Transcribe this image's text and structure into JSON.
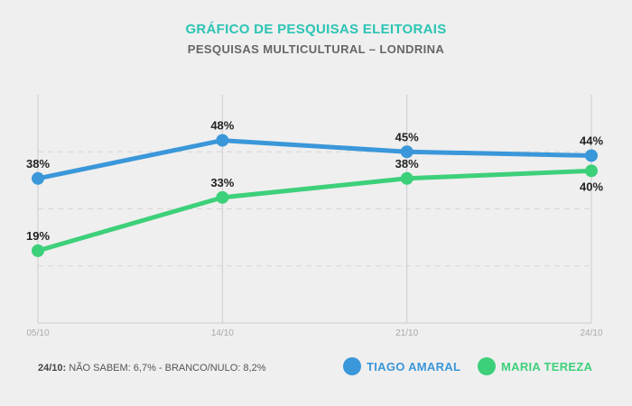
{
  "header": {
    "title": "GRÁFICO DE PESQUISAS ELEITORAIS",
    "subtitle": "PESQUISAS MULTICULTURAL – LONDRINA"
  },
  "footnote": {
    "date": "24/10:",
    "text": " NÃO SABEM: 6,7% - BRANCO/NULO: 8,2%"
  },
  "colors": {
    "title": "#2bc4b4",
    "tiago": "#3a97d9",
    "maria": "#3dd07a"
  },
  "chart_data": {
    "type": "line",
    "categories": [
      "05/10",
      "14/10",
      "21/10",
      "24/10"
    ],
    "ylim": [
      0,
      60
    ],
    "grid": "dashed horizontal, solid vertical at categories",
    "legend_position": "bottom-right",
    "series": [
      {
        "name": "TIAGO AMARAL",
        "values": [
          38,
          48,
          45,
          44
        ],
        "labels": [
          "38%",
          "48%",
          "45%",
          "44%"
        ],
        "color": "#3a97d9"
      },
      {
        "name": "MARIA TEREZA",
        "values": [
          19,
          33,
          38,
          40
        ],
        "labels": [
          "19%",
          "33%",
          "38%",
          "40%"
        ],
        "color": "#3dd07a"
      }
    ]
  }
}
